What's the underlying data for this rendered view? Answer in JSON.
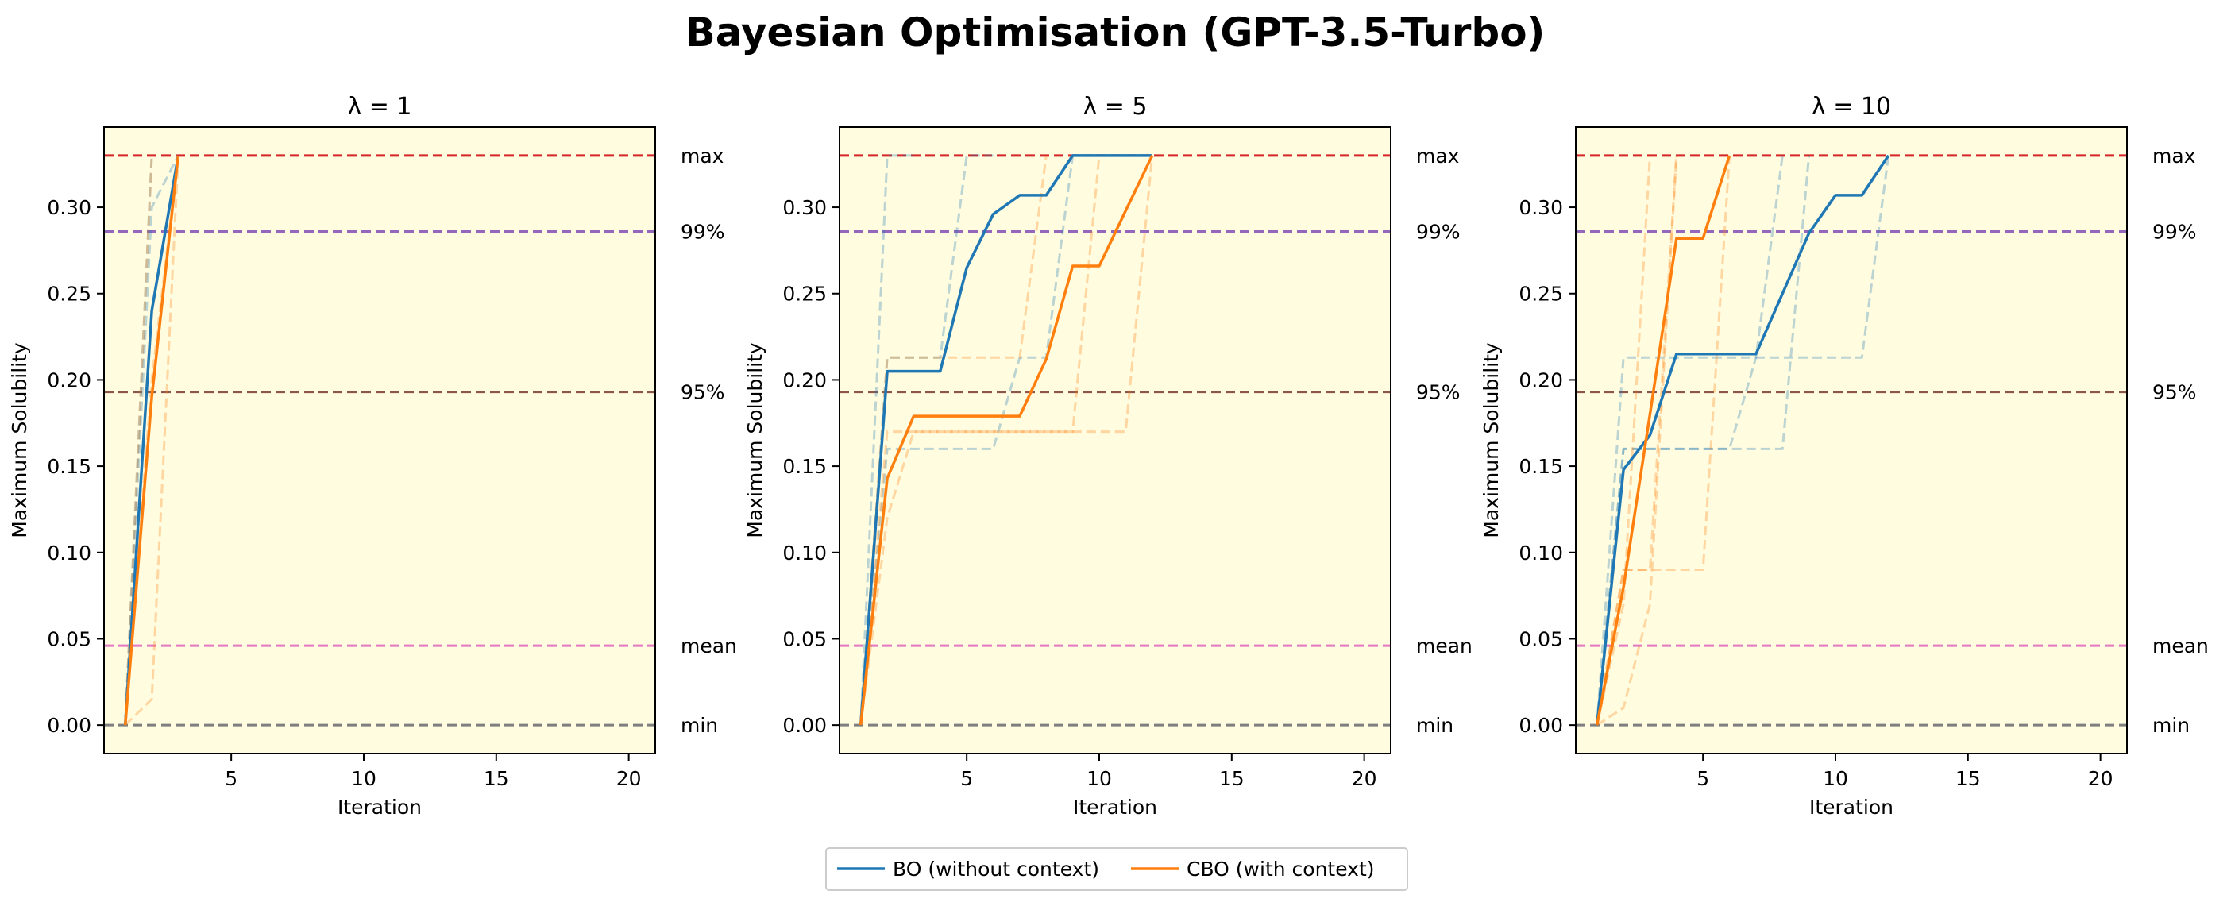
{
  "figure": {
    "title": "Bayesian Optimisation (GPT-3.5-Turbo)",
    "colors": {
      "bo": "#1f77b4",
      "cbo": "#ff7f0e",
      "plot_background": "#fffce0",
      "max_line": "#d62728",
      "p99_line": "#9467bd",
      "p95_line": "#8c564b",
      "mean_line": "#e377c2",
      "min_line": "#7f7f7f"
    }
  },
  "legend": {
    "items": [
      {
        "label": "BO (without context)",
        "color": "#1f77b4"
      },
      {
        "label": "CBO (with context)",
        "color": "#ff7f0e"
      }
    ]
  },
  "chart_data": [
    {
      "type": "line",
      "title": "λ = 1",
      "xlabel": "Iteration",
      "ylabel": "Maximum Solubility",
      "xlim": [
        0.2,
        21
      ],
      "ylim": [
        -0.0165,
        0.3465
      ],
      "xticks": [
        5,
        10,
        15,
        20
      ],
      "yticks": [
        "0.00",
        "0.05",
        "0.10",
        "0.15",
        "0.20",
        "0.25",
        "0.30"
      ],
      "grid": false,
      "reference_lines": [
        {
          "label": "max",
          "value": 0.33,
          "color": "#d62728"
        },
        {
          "label": "99%",
          "value": 0.286,
          "color": "#9467bd"
        },
        {
          "label": "95%",
          "value": 0.193,
          "color": "#8c564b"
        },
        {
          "label": "mean",
          "value": 0.046,
          "color": "#e377c2"
        },
        {
          "label": "min",
          "value": 0.0,
          "color": "#7f7f7f"
        }
      ],
      "series": [
        {
          "name": "BO (without context)",
          "color": "#1f77b4",
          "style": "solid",
          "x": [
            1,
            2,
            3
          ],
          "y": [
            0.0,
            0.24,
            0.33
          ]
        },
        {
          "name": "CBO (with context)",
          "color": "#ff7f0e",
          "style": "solid",
          "x": [
            1,
            2,
            3
          ],
          "y": [
            0.0,
            0.19,
            0.33
          ]
        },
        {
          "color": "#1f77b4",
          "style": "dashed",
          "x": [
            1,
            2,
            3
          ],
          "y": [
            0.0,
            0.3,
            0.33
          ]
        },
        {
          "color": "#1f77b4",
          "style": "dashed",
          "x": [
            1,
            2
          ],
          "y": [
            0.0,
            0.33
          ]
        },
        {
          "color": "#ff7f0e",
          "style": "dashed",
          "x": [
            1,
            2,
            3
          ],
          "y": [
            0.0,
            0.015,
            0.33
          ]
        },
        {
          "color": "#ff7f0e",
          "style": "dashed",
          "x": [
            1,
            2,
            3
          ],
          "y": [
            0.0,
            0.2,
            0.33
          ]
        },
        {
          "color": "#ff7f0e",
          "style": "dashed",
          "x": [
            1,
            2
          ],
          "y": [
            0.0,
            0.33
          ]
        }
      ]
    },
    {
      "type": "line",
      "title": "λ = 5",
      "xlabel": "Iteration",
      "ylabel": "Maximum Solubility",
      "xlim": [
        0.2,
        21
      ],
      "ylim": [
        -0.0165,
        0.3465
      ],
      "xticks": [
        5,
        10,
        15,
        20
      ],
      "yticks": [
        "0.00",
        "0.05",
        "0.10",
        "0.15",
        "0.20",
        "0.25",
        "0.30"
      ],
      "grid": false,
      "reference_lines": [
        {
          "label": "max",
          "value": 0.33,
          "color": "#d62728"
        },
        {
          "label": "99%",
          "value": 0.286,
          "color": "#9467bd"
        },
        {
          "label": "95%",
          "value": 0.193,
          "color": "#8c564b"
        },
        {
          "label": "mean",
          "value": 0.046,
          "color": "#e377c2"
        },
        {
          "label": "min",
          "value": 0.0,
          "color": "#7f7f7f"
        }
      ],
      "series": [
        {
          "name": "BO (without context)",
          "color": "#1f77b4",
          "style": "solid",
          "x": [
            1,
            2,
            3,
            4,
            5,
            6,
            7,
            8,
            9,
            10,
            11,
            12
          ],
          "y": [
            0.0,
            0.205,
            0.205,
            0.205,
            0.265,
            0.296,
            0.307,
            0.307,
            0.33,
            0.33,
            0.33,
            0.33
          ]
        },
        {
          "name": "CBO (with context)",
          "color": "#ff7f0e",
          "style": "solid",
          "x": [
            1,
            2,
            3,
            4,
            5,
            6,
            7,
            8,
            9,
            10,
            11,
            12
          ],
          "y": [
            0.0,
            0.143,
            0.179,
            0.179,
            0.179,
            0.179,
            0.179,
            0.212,
            0.266,
            0.266,
            0.298,
            0.33
          ]
        },
        {
          "color": "#1f77b4",
          "style": "dashed",
          "x": [
            1,
            2,
            3
          ],
          "y": [
            0.0,
            0.33,
            0.33
          ]
        },
        {
          "color": "#1f77b4",
          "style": "dashed",
          "x": [
            1,
            2,
            3,
            4,
            5,
            6
          ],
          "y": [
            0.0,
            0.213,
            0.213,
            0.213,
            0.33,
            0.33
          ]
        },
        {
          "color": "#1f77b4",
          "style": "dashed",
          "x": [
            1,
            2,
            3,
            4,
            5,
            6,
            7,
            8,
            9
          ],
          "y": [
            0.0,
            0.16,
            0.16,
            0.16,
            0.16,
            0.16,
            0.213,
            0.213,
            0.33
          ]
        },
        {
          "color": "#ff7f0e",
          "style": "dashed",
          "x": [
            1,
            2,
            3,
            4,
            5,
            6,
            7,
            8,
            9,
            10
          ],
          "y": [
            0.0,
            0.17,
            0.17,
            0.17,
            0.17,
            0.17,
            0.17,
            0.17,
            0.17,
            0.33
          ]
        },
        {
          "color": "#ff7f0e",
          "style": "dashed",
          "x": [
            1,
            2,
            3,
            4,
            5,
            6,
            7,
            8
          ],
          "y": [
            0.0,
            0.213,
            0.213,
            0.213,
            0.213,
            0.213,
            0.213,
            0.33
          ]
        },
        {
          "color": "#ff7f0e",
          "style": "dashed",
          "x": [
            1,
            2,
            3,
            4,
            5,
            6,
            7,
            8,
            9,
            10,
            11,
            12
          ],
          "y": [
            0.0,
            0.12,
            0.17,
            0.17,
            0.17,
            0.17,
            0.17,
            0.17,
            0.17,
            0.17,
            0.17,
            0.33
          ]
        }
      ]
    },
    {
      "type": "line",
      "title": "λ = 10",
      "xlabel": "Iteration",
      "ylabel": "Maximum Solubility",
      "xlim": [
        0.2,
        21
      ],
      "ylim": [
        -0.0165,
        0.3465
      ],
      "xticks": [
        5,
        10,
        15,
        20
      ],
      "yticks": [
        "0.00",
        "0.05",
        "0.10",
        "0.15",
        "0.20",
        "0.25",
        "0.30"
      ],
      "grid": false,
      "reference_lines": [
        {
          "label": "max",
          "value": 0.33,
          "color": "#d62728"
        },
        {
          "label": "99%",
          "value": 0.286,
          "color": "#9467bd"
        },
        {
          "label": "95%",
          "value": 0.193,
          "color": "#8c564b"
        },
        {
          "label": "mean",
          "value": 0.046,
          "color": "#e377c2"
        },
        {
          "label": "min",
          "value": 0.0,
          "color": "#7f7f7f"
        }
      ],
      "series": [
        {
          "name": "BO (without context)",
          "color": "#1f77b4",
          "style": "solid",
          "x": [
            1,
            2,
            3,
            4,
            5,
            6,
            7,
            8,
            9,
            10,
            11,
            12
          ],
          "y": [
            0.0,
            0.148,
            0.168,
            0.215,
            0.215,
            0.215,
            0.215,
            0.25,
            0.285,
            0.307,
            0.307,
            0.33
          ]
        },
        {
          "name": "CBO (with context)",
          "color": "#ff7f0e",
          "style": "solid",
          "x": [
            1,
            2,
            3,
            4,
            5,
            6
          ],
          "y": [
            0.0,
            0.08,
            0.18,
            0.282,
            0.282,
            0.33
          ]
        },
        {
          "color": "#1f77b4",
          "style": "dashed",
          "x": [
            1,
            2,
            3,
            4,
            5,
            6,
            7,
            8,
            9,
            10,
            11,
            12
          ],
          "y": [
            0.0,
            0.213,
            0.213,
            0.213,
            0.213,
            0.213,
            0.213,
            0.213,
            0.213,
            0.213,
            0.213,
            0.33
          ]
        },
        {
          "color": "#1f77b4",
          "style": "dashed",
          "x": [
            1,
            2,
            3,
            4,
            5,
            6,
            7,
            8,
            9
          ],
          "y": [
            0.0,
            0.16,
            0.16,
            0.16,
            0.16,
            0.16,
            0.16,
            0.16,
            0.33
          ]
        },
        {
          "color": "#1f77b4",
          "style": "dashed",
          "x": [
            1,
            2,
            3,
            4,
            5,
            6,
            7,
            8
          ],
          "y": [
            0.0,
            0.16,
            0.16,
            0.16,
            0.16,
            0.16,
            0.213,
            0.33
          ]
        },
        {
          "color": "#ff7f0e",
          "style": "dashed",
          "x": [
            1,
            2,
            3,
            4
          ],
          "y": [
            0.0,
            0.09,
            0.09,
            0.33
          ]
        },
        {
          "color": "#ff7f0e",
          "style": "dashed",
          "x": [
            1,
            2,
            3,
            4,
            5,
            6
          ],
          "y": [
            0.0,
            0.09,
            0.09,
            0.09,
            0.09,
            0.33
          ]
        },
        {
          "color": "#ff7f0e",
          "style": "dashed",
          "x": [
            1,
            2,
            3,
            4
          ],
          "y": [
            0.0,
            0.01,
            0.07,
            0.33
          ]
        },
        {
          "color": "#ff7f0e",
          "style": "dashed",
          "x": [
            1,
            2,
            3
          ],
          "y": [
            0.0,
            0.07,
            0.33
          ]
        }
      ]
    }
  ]
}
